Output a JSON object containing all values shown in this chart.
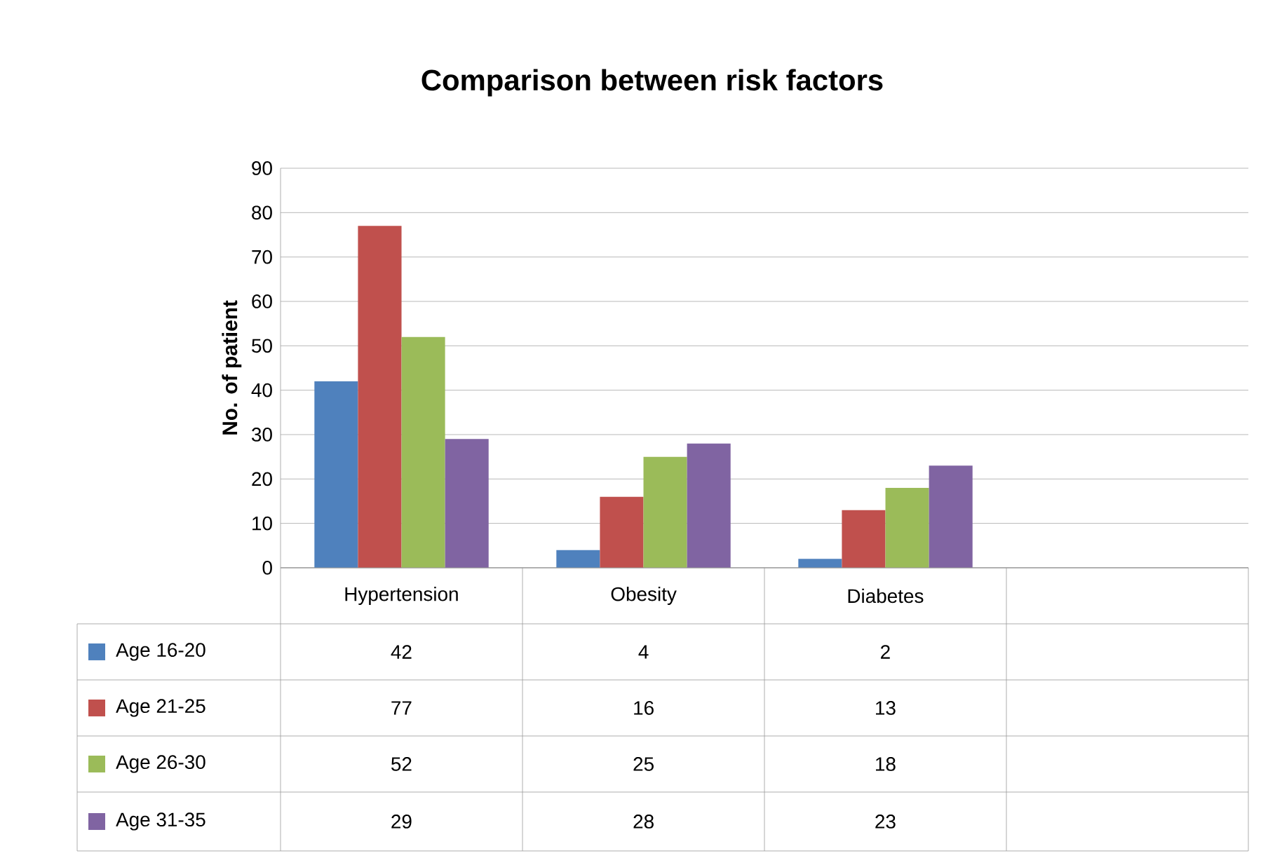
{
  "chart_data": {
    "type": "bar",
    "title": "Comparison between risk factors",
    "ylabel": "No. of patient",
    "categories": [
      "Hypertension",
      "Obesity",
      "Diabetes",
      null
    ],
    "series": [
      {
        "name": "Age 16-20",
        "color": "#4f81bd",
        "values": [
          42,
          4,
          2,
          null
        ]
      },
      {
        "name": "Age 21-25",
        "color": "#c0504d",
        "values": [
          77,
          16,
          13,
          null
        ]
      },
      {
        "name": "Age 26-30",
        "color": "#9bbb59",
        "values": [
          52,
          25,
          18,
          null
        ]
      },
      {
        "name": "Age 31-35",
        "color": "#8064a2",
        "values": [
          29,
          28,
          23,
          null
        ]
      }
    ],
    "ylim": [
      0,
      90
    ],
    "yticks": [
      0,
      10,
      20,
      30,
      40,
      50,
      60,
      70,
      80,
      90
    ],
    "grid": "y",
    "legend": "bottom",
    "data_labels": true
  }
}
